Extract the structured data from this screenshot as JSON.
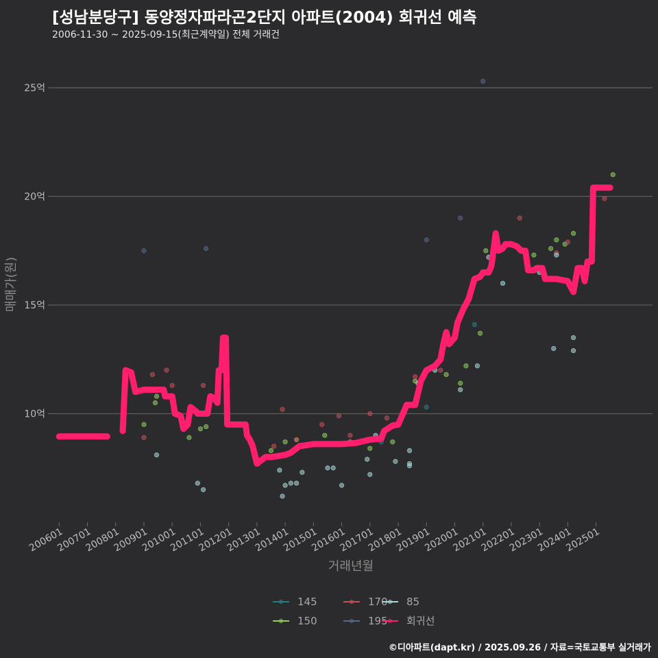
{
  "chart_data": {
    "type": "scatter",
    "title": "[성남분당구] 동양정자파라곤2단지 아파트(2004) 회귀선 예측",
    "subtitle": "2006-11-30 ~ 2025-09-15(최근계약일) 전체 거래건",
    "caption": "©디아파트(dapt.kr) / 2025.09.26 / 자료=국토교통부 실거래가",
    "xlabel": "거래년월",
    "ylabel": "매매가(원)",
    "xlim": [
      2005.75,
      2027.0
    ],
    "ylim": [
      5.0,
      26.2
    ],
    "y_ticks": [
      {
        "value": 10,
        "label": "10억"
      },
      {
        "value": 15,
        "label": "15억"
      },
      {
        "value": 20,
        "label": "20억"
      },
      {
        "value": 25,
        "label": "25억"
      }
    ],
    "x_ticks": [
      {
        "value": 2006.0,
        "label": "200601"
      },
      {
        "value": 2007.0,
        "label": "200701"
      },
      {
        "value": 2008.0,
        "label": "200801"
      },
      {
        "value": 2009.0,
        "label": "200901"
      },
      {
        "value": 2010.0,
        "label": "201001"
      },
      {
        "value": 2011.0,
        "label": "201101"
      },
      {
        "value": 2012.0,
        "label": "201201"
      },
      {
        "value": 2013.0,
        "label": "201301"
      },
      {
        "value": 2014.0,
        "label": "201401"
      },
      {
        "value": 2015.0,
        "label": "201501"
      },
      {
        "value": 2016.0,
        "label": "201601"
      },
      {
        "value": 2017.0,
        "label": "201701"
      },
      {
        "value": 2018.0,
        "label": "201801"
      },
      {
        "value": 2019.0,
        "label": "201901"
      },
      {
        "value": 2020.0,
        "label": "202001"
      },
      {
        "value": 2021.0,
        "label": "202101"
      },
      {
        "value": 2022.0,
        "label": "202201"
      },
      {
        "value": 2023.0,
        "label": "202301"
      },
      {
        "value": 2024.0,
        "label": "202401"
      },
      {
        "value": 2025.0,
        "label": "202501"
      }
    ],
    "grid": true,
    "legend_position": "bottom",
    "legend": [
      {
        "name": "145",
        "color": "#2a7d86"
      },
      {
        "name": "150",
        "color": "#8fcf5f"
      },
      {
        "name": "170",
        "color": "#c4505a"
      },
      {
        "name": "195",
        "color": "#58688f"
      },
      {
        "name": "85",
        "color": "#a9d8dc"
      },
      {
        "name": "회귀선",
        "color": "#ff1f6e"
      }
    ],
    "series": [
      {
        "name": "145",
        "color": "#2a7d86",
        "points": [
          [
            2017.4,
            8.7
          ],
          [
            2019.0,
            10.3
          ],
          [
            2020.7,
            14.1
          ]
        ]
      },
      {
        "name": "150",
        "color": "#8fcf5f",
        "points": [
          [
            2009.0,
            9.5
          ],
          [
            2009.4,
            10.5
          ],
          [
            2009.45,
            10.8
          ],
          [
            2010.6,
            8.9
          ],
          [
            2011.2,
            9.4
          ],
          [
            2011.0,
            9.3
          ],
          [
            2013.5,
            8.3
          ],
          [
            2014.0,
            8.7
          ],
          [
            2014.4,
            8.8
          ],
          [
            2015.0,
            8.6
          ],
          [
            2015.4,
            9.0
          ],
          [
            2016.3,
            8.7
          ],
          [
            2017.0,
            8.4
          ],
          [
            2017.8,
            8.7
          ],
          [
            2018.6,
            11.5
          ],
          [
            2019.7,
            11.8
          ],
          [
            2020.9,
            13.7
          ],
          [
            2021.1,
            17.5
          ],
          [
            2022.8,
            17.3
          ],
          [
            2023.4,
            17.6
          ],
          [
            2023.6,
            18.0
          ],
          [
            2025.6,
            21.0
          ],
          [
            2024.2,
            18.3
          ],
          [
            2023.9,
            17.8
          ],
          [
            2020.4,
            12.2
          ],
          [
            2020.2,
            11.4
          ]
        ]
      },
      {
        "name": "170",
        "color": "#c4505a",
        "points": [
          [
            2009.0,
            8.9
          ],
          [
            2009.3,
            11.8
          ],
          [
            2009.8,
            12.0
          ],
          [
            2010.0,
            11.3
          ],
          [
            2011.1,
            11.3
          ],
          [
            2013.6,
            8.5
          ],
          [
            2013.9,
            10.2
          ],
          [
            2014.4,
            8.8
          ],
          [
            2015.3,
            9.5
          ],
          [
            2015.9,
            9.9
          ],
          [
            2016.3,
            9.0
          ],
          [
            2017.0,
            10.0
          ],
          [
            2017.6,
            9.8
          ],
          [
            2018.6,
            11.7
          ],
          [
            2019.5,
            12.0
          ],
          [
            2021.5,
            17.8
          ],
          [
            2022.3,
            19.0
          ],
          [
            2023.6,
            17.4
          ],
          [
            2024.0,
            17.9
          ],
          [
            2025.3,
            19.9
          ]
        ]
      },
      {
        "name": "195",
        "color": "#58688f",
        "points": [
          [
            2009.0,
            17.5
          ],
          [
            2011.2,
            17.6
          ],
          [
            2019.0,
            18.0
          ],
          [
            2020.2,
            19.0
          ],
          [
            2021.0,
            25.3
          ]
        ]
      },
      {
        "name": "85",
        "color": "#a9d8dc",
        "points": [
          [
            2009.45,
            8.1
          ],
          [
            2010.9,
            6.8
          ],
          [
            2011.1,
            6.5
          ],
          [
            2013.8,
            7.4
          ],
          [
            2013.9,
            6.2
          ],
          [
            2014.0,
            6.7
          ],
          [
            2014.2,
            6.8
          ],
          [
            2014.4,
            6.8
          ],
          [
            2014.6,
            7.3
          ],
          [
            2015.5,
            7.5
          ],
          [
            2015.7,
            7.5
          ],
          [
            2016.0,
            6.7
          ],
          [
            2016.9,
            7.9
          ],
          [
            2017.0,
            7.2
          ],
          [
            2017.2,
            9.0
          ],
          [
            2017.9,
            7.8
          ],
          [
            2018.4,
            7.7
          ],
          [
            2018.4,
            7.6
          ],
          [
            2018.4,
            8.3
          ],
          [
            2018.7,
            11.4
          ],
          [
            2019.3,
            12.0
          ],
          [
            2020.2,
            11.1
          ],
          [
            2020.8,
            12.2
          ],
          [
            2021.7,
            16.0
          ],
          [
            2023.0,
            16.5
          ],
          [
            2023.5,
            13.0
          ],
          [
            2024.2,
            13.5
          ],
          [
            2024.2,
            12.9
          ],
          [
            2023.6,
            17.3
          ],
          [
            2021.2,
            17.2
          ]
        ]
      },
      {
        "name": "회귀선",
        "color": "#ff1f6e",
        "type": "step",
        "segments": [
          [
            [
              2006.0,
              8.95
            ],
            [
              2007.7,
              8.95
            ]
          ],
          [
            [
              2008.25,
              9.2
            ],
            [
              2008.35,
              12.0
            ],
            [
              2008.55,
              11.9
            ],
            [
              2008.7,
              11.0
            ],
            [
              2009.0,
              11.1
            ],
            [
              2009.7,
              11.1
            ],
            [
              2009.75,
              10.8
            ],
            [
              2010.0,
              10.8
            ],
            [
              2010.1,
              10.0
            ],
            [
              2010.3,
              9.9
            ],
            [
              2010.4,
              9.3
            ],
            [
              2010.55,
              9.5
            ],
            [
              2010.65,
              10.3
            ],
            [
              2010.85,
              10.1
            ],
            [
              2010.9,
              10.0
            ],
            [
              2011.2,
              10.0
            ],
            [
              2011.25,
              10.0
            ],
            [
              2011.35,
              10.8
            ],
            [
              2011.5,
              10.7
            ],
            [
              2011.6,
              10.5
            ],
            [
              2011.65,
              12.0
            ],
            [
              2011.75,
              12.0
            ],
            [
              2011.8,
              13.5
            ],
            [
              2011.9,
              13.5
            ],
            [
              2011.95,
              9.5
            ],
            [
              2012.6,
              9.5
            ],
            [
              2012.65,
              9.0
            ],
            [
              2012.75,
              8.8
            ],
            [
              2012.85,
              8.5
            ],
            [
              2013.0,
              7.7
            ],
            [
              2013.3,
              8.0
            ],
            [
              2013.5,
              8.0
            ],
            [
              2014.0,
              8.1
            ],
            [
              2014.2,
              8.2
            ],
            [
              2014.5,
              8.5
            ],
            [
              2015.0,
              8.6
            ],
            [
              2015.5,
              8.6
            ],
            [
              2016.0,
              8.6
            ],
            [
              2016.5,
              8.65
            ],
            [
              2017.0,
              8.8
            ],
            [
              2017.4,
              8.85
            ],
            [
              2017.5,
              9.2
            ],
            [
              2017.8,
              9.45
            ],
            [
              2018.0,
              9.5
            ],
            [
              2018.3,
              10.4
            ],
            [
              2018.6,
              10.4
            ],
            [
              2018.8,
              11.5
            ],
            [
              2019.0,
              12.0
            ],
            [
              2019.3,
              12.2
            ],
            [
              2019.5,
              12.5
            ],
            [
              2019.6,
              13.2
            ],
            [
              2019.7,
              13.75
            ],
            [
              2019.8,
              13.2
            ],
            [
              2020.0,
              13.5
            ],
            [
              2020.1,
              14.2
            ],
            [
              2020.3,
              14.8
            ],
            [
              2020.5,
              15.3
            ],
            [
              2020.7,
              16.2
            ],
            [
              2020.9,
              16.3
            ],
            [
              2021.0,
              16.5
            ],
            [
              2021.2,
              16.5
            ],
            [
              2021.3,
              16.8
            ],
            [
              2021.45,
              18.3
            ],
            [
              2021.55,
              17.5
            ],
            [
              2021.7,
              17.6
            ],
            [
              2021.8,
              17.8
            ],
            [
              2022.0,
              17.8
            ],
            [
              2022.2,
              17.7
            ],
            [
              2022.35,
              17.5
            ],
            [
              2022.5,
              17.5
            ],
            [
              2022.6,
              16.6
            ],
            [
              2022.8,
              16.6
            ],
            [
              2022.9,
              16.7
            ],
            [
              2023.1,
              16.7
            ],
            [
              2023.2,
              16.2
            ],
            [
              2023.6,
              16.2
            ],
            [
              2024.0,
              16.1
            ],
            [
              2024.2,
              15.6
            ],
            [
              2024.35,
              16.7
            ],
            [
              2024.5,
              16.7
            ],
            [
              2024.6,
              16.1
            ],
            [
              2024.7,
              17.0
            ],
            [
              2024.85,
              17.0
            ],
            [
              2024.9,
              20.4
            ],
            [
              2025.5,
              20.4
            ]
          ]
        ]
      }
    ]
  }
}
